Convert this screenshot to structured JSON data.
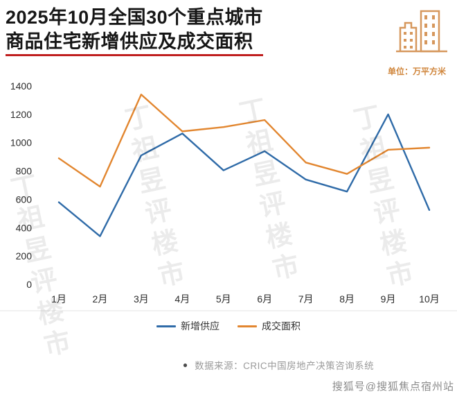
{
  "header": {
    "title_line1": "2025年10月全国30个重点城市",
    "title_line2": "商品住宅新增供应及成交面积",
    "unit_label": "单位：万平方米",
    "title_underline_color": "#c01f1f",
    "icon_color": "#d6975c"
  },
  "chart_data": {
    "type": "line",
    "categories": [
      "1月",
      "2月",
      "3月",
      "4月",
      "5月",
      "6月",
      "7月",
      "8月",
      "9月",
      "10月"
    ],
    "series": [
      {
        "name": "新增供应",
        "color": "#2f6ba8",
        "values": [
          580,
          340,
          910,
          1065,
          805,
          940,
          740,
          655,
          1200,
          525
        ]
      },
      {
        "name": "成交面积",
        "color": "#e2862f",
        "values": [
          890,
          690,
          1340,
          1080,
          1110,
          1160,
          860,
          780,
          950,
          965
        ]
      }
    ],
    "title": "2025年10月全国30个重点城市商品住宅新增供应及成交面积",
    "xlabel": "",
    "ylabel": "万平方米",
    "ylim": [
      0,
      1400
    ],
    "ytick_step": 200,
    "grid": false,
    "legend_position": "bottom"
  },
  "watermark": {
    "text": "丁祖昱评楼市"
  },
  "footer": {
    "bullet": "●",
    "source_text": "数据来源：CRIC中国房地产决策咨询系统",
    "watermark_bottom": "搜狐号@搜狐焦点宿州站"
  }
}
